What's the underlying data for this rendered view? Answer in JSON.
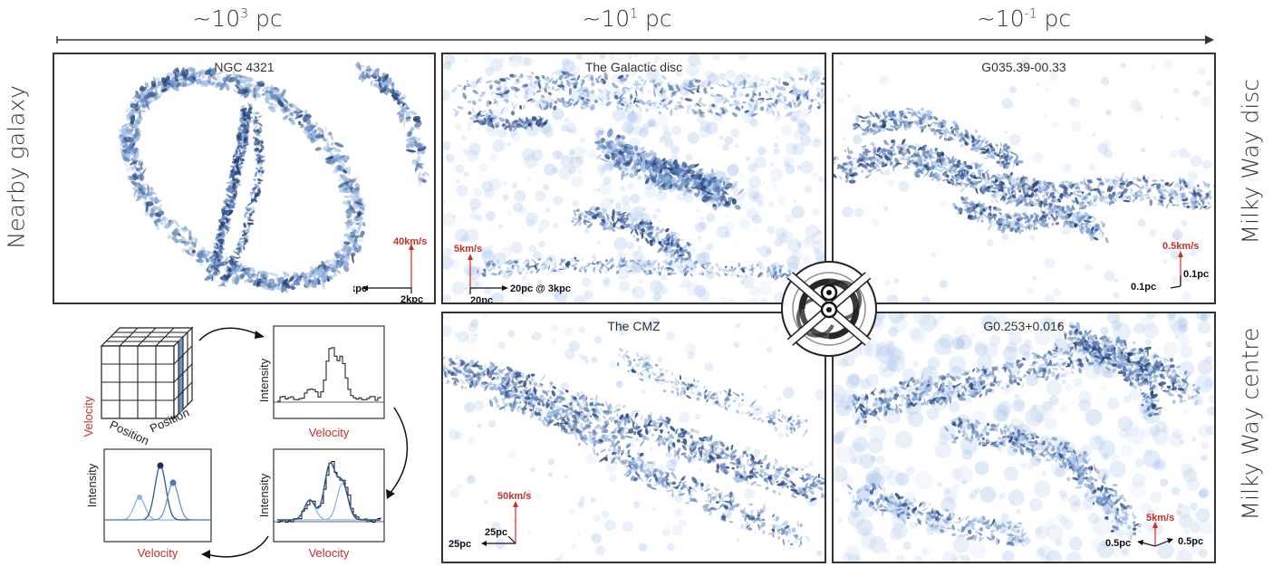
{
  "scales": {
    "left": "~10",
    "left_exp": "3",
    "mid": "~10",
    "mid_exp": "1",
    "right": "~10",
    "right_exp": "-1",
    "unit": " pc"
  },
  "rows": {
    "top_left": "Nearby galaxy",
    "top_right": "Milky Way disc",
    "bottom_right": "Milky Way centre"
  },
  "panels": {
    "ngc": {
      "title": "NGC 4321",
      "vel": "40km/s",
      "x": "2kpc",
      "y": "2kpc"
    },
    "disc": {
      "title": "The Galactic disc",
      "vel": "5km/s",
      "x": "20pc @ 3kpc",
      "y": "20pc"
    },
    "g035": {
      "title": "G035.39-00.33",
      "vel": "0.5km/s",
      "x": "0.1pc",
      "y": "0.1pc"
    },
    "cmz": {
      "title": "The CMZ",
      "vel": "50km/s",
      "x": "25pc",
      "y": "25pc"
    },
    "g0253": {
      "title": "G0.253+0.016",
      "vel": "5km/s",
      "x": "0.5pc",
      "y": "0.5pc"
    }
  },
  "schematic": {
    "cube_axis_velocity": "Velocity",
    "cube_axis_pos1": "Position",
    "cube_axis_pos2": "Position",
    "intensity": "Intensity",
    "velocity": "Velocity"
  },
  "colors": {
    "accent_red": "#c8302a",
    "data_blue": "#2e5a9c",
    "light_blue": "#8ab4e8",
    "cube_fill": "#6f93c9"
  }
}
